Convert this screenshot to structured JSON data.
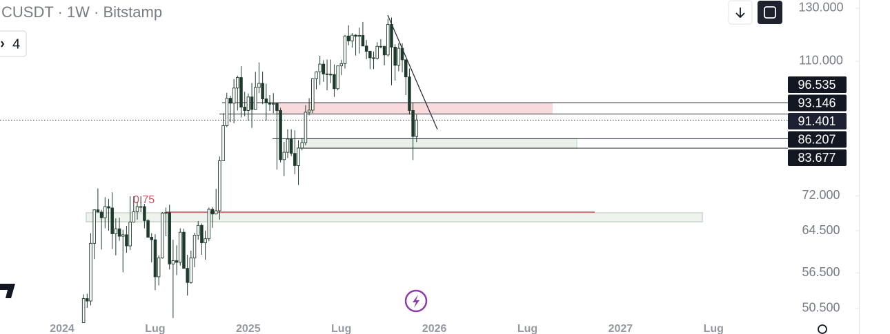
{
  "chart_data": {
    "type": "candlestick",
    "title": "CUSDT · 1W · Bitstamp",
    "indicator_count": 4,
    "yscale": "log",
    "ylim": [
      46600,
      133400
    ],
    "yticks": [
      {
        "value": 130000,
        "label": "130.000"
      },
      {
        "value": 110000,
        "label": "110.000"
      },
      {
        "value": 72000,
        "label": "72.000"
      },
      {
        "value": 64500,
        "label": "64.500"
      },
      {
        "value": 56500,
        "label": "56.500"
      },
      {
        "value": 50500,
        "label": "50.500"
      }
    ],
    "x_labels": [
      "2024",
      "Lug",
      "2025",
      "Lug",
      "2026",
      "Lug",
      "2027",
      "Lug"
    ],
    "price_tags": [
      {
        "value": 96535,
        "label": "96.535"
      },
      {
        "value": 93146,
        "label": "93.146"
      },
      {
        "value": 91401,
        "label": "91.401"
      },
      {
        "value": 86207,
        "label": "86.207"
      },
      {
        "value": 83677,
        "label": "83.677"
      }
    ],
    "annotation": "0.75",
    "up_color": "#ffffff",
    "down_color": "#1e3a2c",
    "candles": {
      "open": [
        48300,
        52100,
        51700,
        62000,
        68900,
        68400,
        67200,
        69600,
        69300,
        63900,
        64900,
        63400,
        63700,
        61500,
        66300,
        68500,
        69600,
        69600,
        66600,
        63200,
        62700,
        55800,
        59200,
        68200,
        68300,
        58100,
        58700,
        58400,
        64200,
        57300,
        54800,
        59200,
        63600,
        65600,
        62100,
        62900,
        69000,
        68000,
        68700,
        80400,
        89800,
        97900,
        96400,
        101100,
        104500,
        95200,
        94200,
        98300,
        94500,
        101300,
        102600,
        97700,
        96500,
        96100,
        96300,
        94200,
        80700,
        82600,
        86100,
        82300,
        79200,
        83700,
        85100,
        93700,
        94300,
        104100,
        106400,
        109000,
        105700,
        105600,
        105500,
        100900,
        108400,
        109200,
        119100,
        117300,
        119400,
        119000,
        119300,
        115400,
        113500,
        111200,
        111000,
        115300,
        115300,
        112200,
        123500,
        115000,
        108600,
        114600,
        110500,
        104700,
        94200,
        86800
      ],
      "high": [
        52800,
        52900,
        64000,
        69000,
        73700,
        68900,
        71700,
        71300,
        72800,
        67100,
        67200,
        64700,
        65500,
        71900,
        71900,
        70600,
        71900,
        70200,
        66900,
        64000,
        63800,
        59700,
        68400,
        69400,
        70000,
        62700,
        61600,
        65000,
        64900,
        59800,
        60600,
        64100,
        66500,
        66000,
        64500,
        69400,
        69500,
        73600,
        81500,
        93400,
        99600,
        98700,
        104000,
        105100,
        108300,
        99900,
        99400,
        102700,
        106400,
        109600,
        106500,
        102500,
        98900,
        99500,
        96500,
        95000,
        85300,
        88800,
        88800,
        88500,
        85800,
        86400,
        95800,
        97900,
        104300,
        106600,
        111900,
        110400,
        110600,
        110600,
        108900,
        108500,
        110500,
        119500,
        123200,
        120200,
        119800,
        122300,
        124500,
        117600,
        113700,
        113400,
        116800,
        117900,
        115400,
        125700,
        126200,
        116000,
        116400,
        116400,
        110600,
        107500,
        96600,
        93000
      ],
      "low": [
        48300,
        50600,
        51000,
        59000,
        68500,
        60800,
        65000,
        64500,
        60900,
        59700,
        62500,
        56600,
        60200,
        60700,
        66200,
        66800,
        68400,
        65000,
        63400,
        58400,
        53500,
        54300,
        59100,
        63400,
        57100,
        49000,
        56100,
        57800,
        57300,
        52600,
        54600,
        57500,
        62700,
        59800,
        58900,
        62400,
        65100,
        68000,
        66800,
        80300,
        89400,
        90800,
        90500,
        94200,
        92200,
        92500,
        91200,
        89200,
        94400,
        99500,
        96100,
        91200,
        94100,
        93400,
        78200,
        80000,
        76600,
        81100,
        81600,
        77100,
        74500,
        83100,
        84400,
        92800,
        93400,
        100700,
        102100,
        103100,
        100400,
        102700,
        98300,
        100400,
        105300,
        107500,
        115700,
        114800,
        112000,
        112700,
        116800,
        110700,
        107300,
        107300,
        110600,
        114600,
        108600,
        111600,
        102000,
        103500,
        106600,
        106300,
        98900,
        93000,
        80600,
        85300
      ],
      "close": [
        52100,
        51700,
        62000,
        68900,
        68400,
        67200,
        69600,
        69300,
        63900,
        64900,
        63400,
        63700,
        61500,
        66300,
        68500,
        69600,
        69600,
        66600,
        63200,
        62700,
        55800,
        59200,
        68200,
        68300,
        58100,
        58700,
        58400,
        64200,
        57300,
        54800,
        59200,
        63600,
        65600,
        62100,
        62900,
        69000,
        68000,
        68700,
        80400,
        89800,
        97900,
        96400,
        101100,
        104500,
        95200,
        94200,
        98300,
        94500,
        101300,
        102600,
        97700,
        96500,
        96100,
        96300,
        94200,
        80700,
        82600,
        86100,
        82300,
        79200,
        83700,
        85100,
        93700,
        94300,
        104100,
        106400,
        109000,
        105700,
        105600,
        105500,
        100900,
        108400,
        109200,
        119100,
        117300,
        119400,
        119000,
        119300,
        115400,
        113500,
        111200,
        111000,
        115300,
        115300,
        112200,
        123500,
        115000,
        108600,
        114600,
        110500,
        104700,
        94200,
        86800,
        91401
      ]
    }
  }
}
